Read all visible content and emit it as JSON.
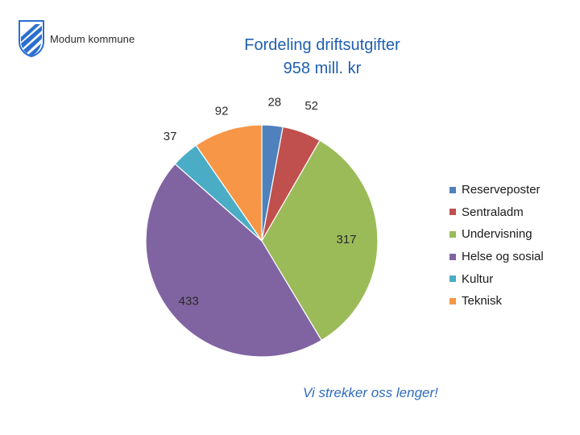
{
  "header": {
    "org_name": "Modum kommune",
    "logo_icon": "municipal-shield-icon"
  },
  "footer": {
    "slogan": "Vi strekker oss lenger!"
  },
  "colors": {
    "title": "#1f5fb0",
    "slogan": "#2f6cc0",
    "logo_blue": "#2a6fd1"
  },
  "chart_data": {
    "type": "pie",
    "title": "Fordeling driftsutgifter",
    "subtitle": "958 mill. kr",
    "legend_position": "right",
    "slices": [
      {
        "label": "Reserveposter",
        "value": 28,
        "color": "#4f81bd"
      },
      {
        "label": "Sentraladm",
        "value": 52,
        "color": "#c0504d"
      },
      {
        "label": "Undervisning",
        "value": 317,
        "color": "#9bbb59"
      },
      {
        "label": "Helse og sosial",
        "value": 433,
        "color": "#8064a2"
      },
      {
        "label": "Kultur",
        "value": 37,
        "color": "#4bacc6"
      },
      {
        "label": "Teknisk",
        "value": 92,
        "color": "#f79646"
      }
    ]
  }
}
